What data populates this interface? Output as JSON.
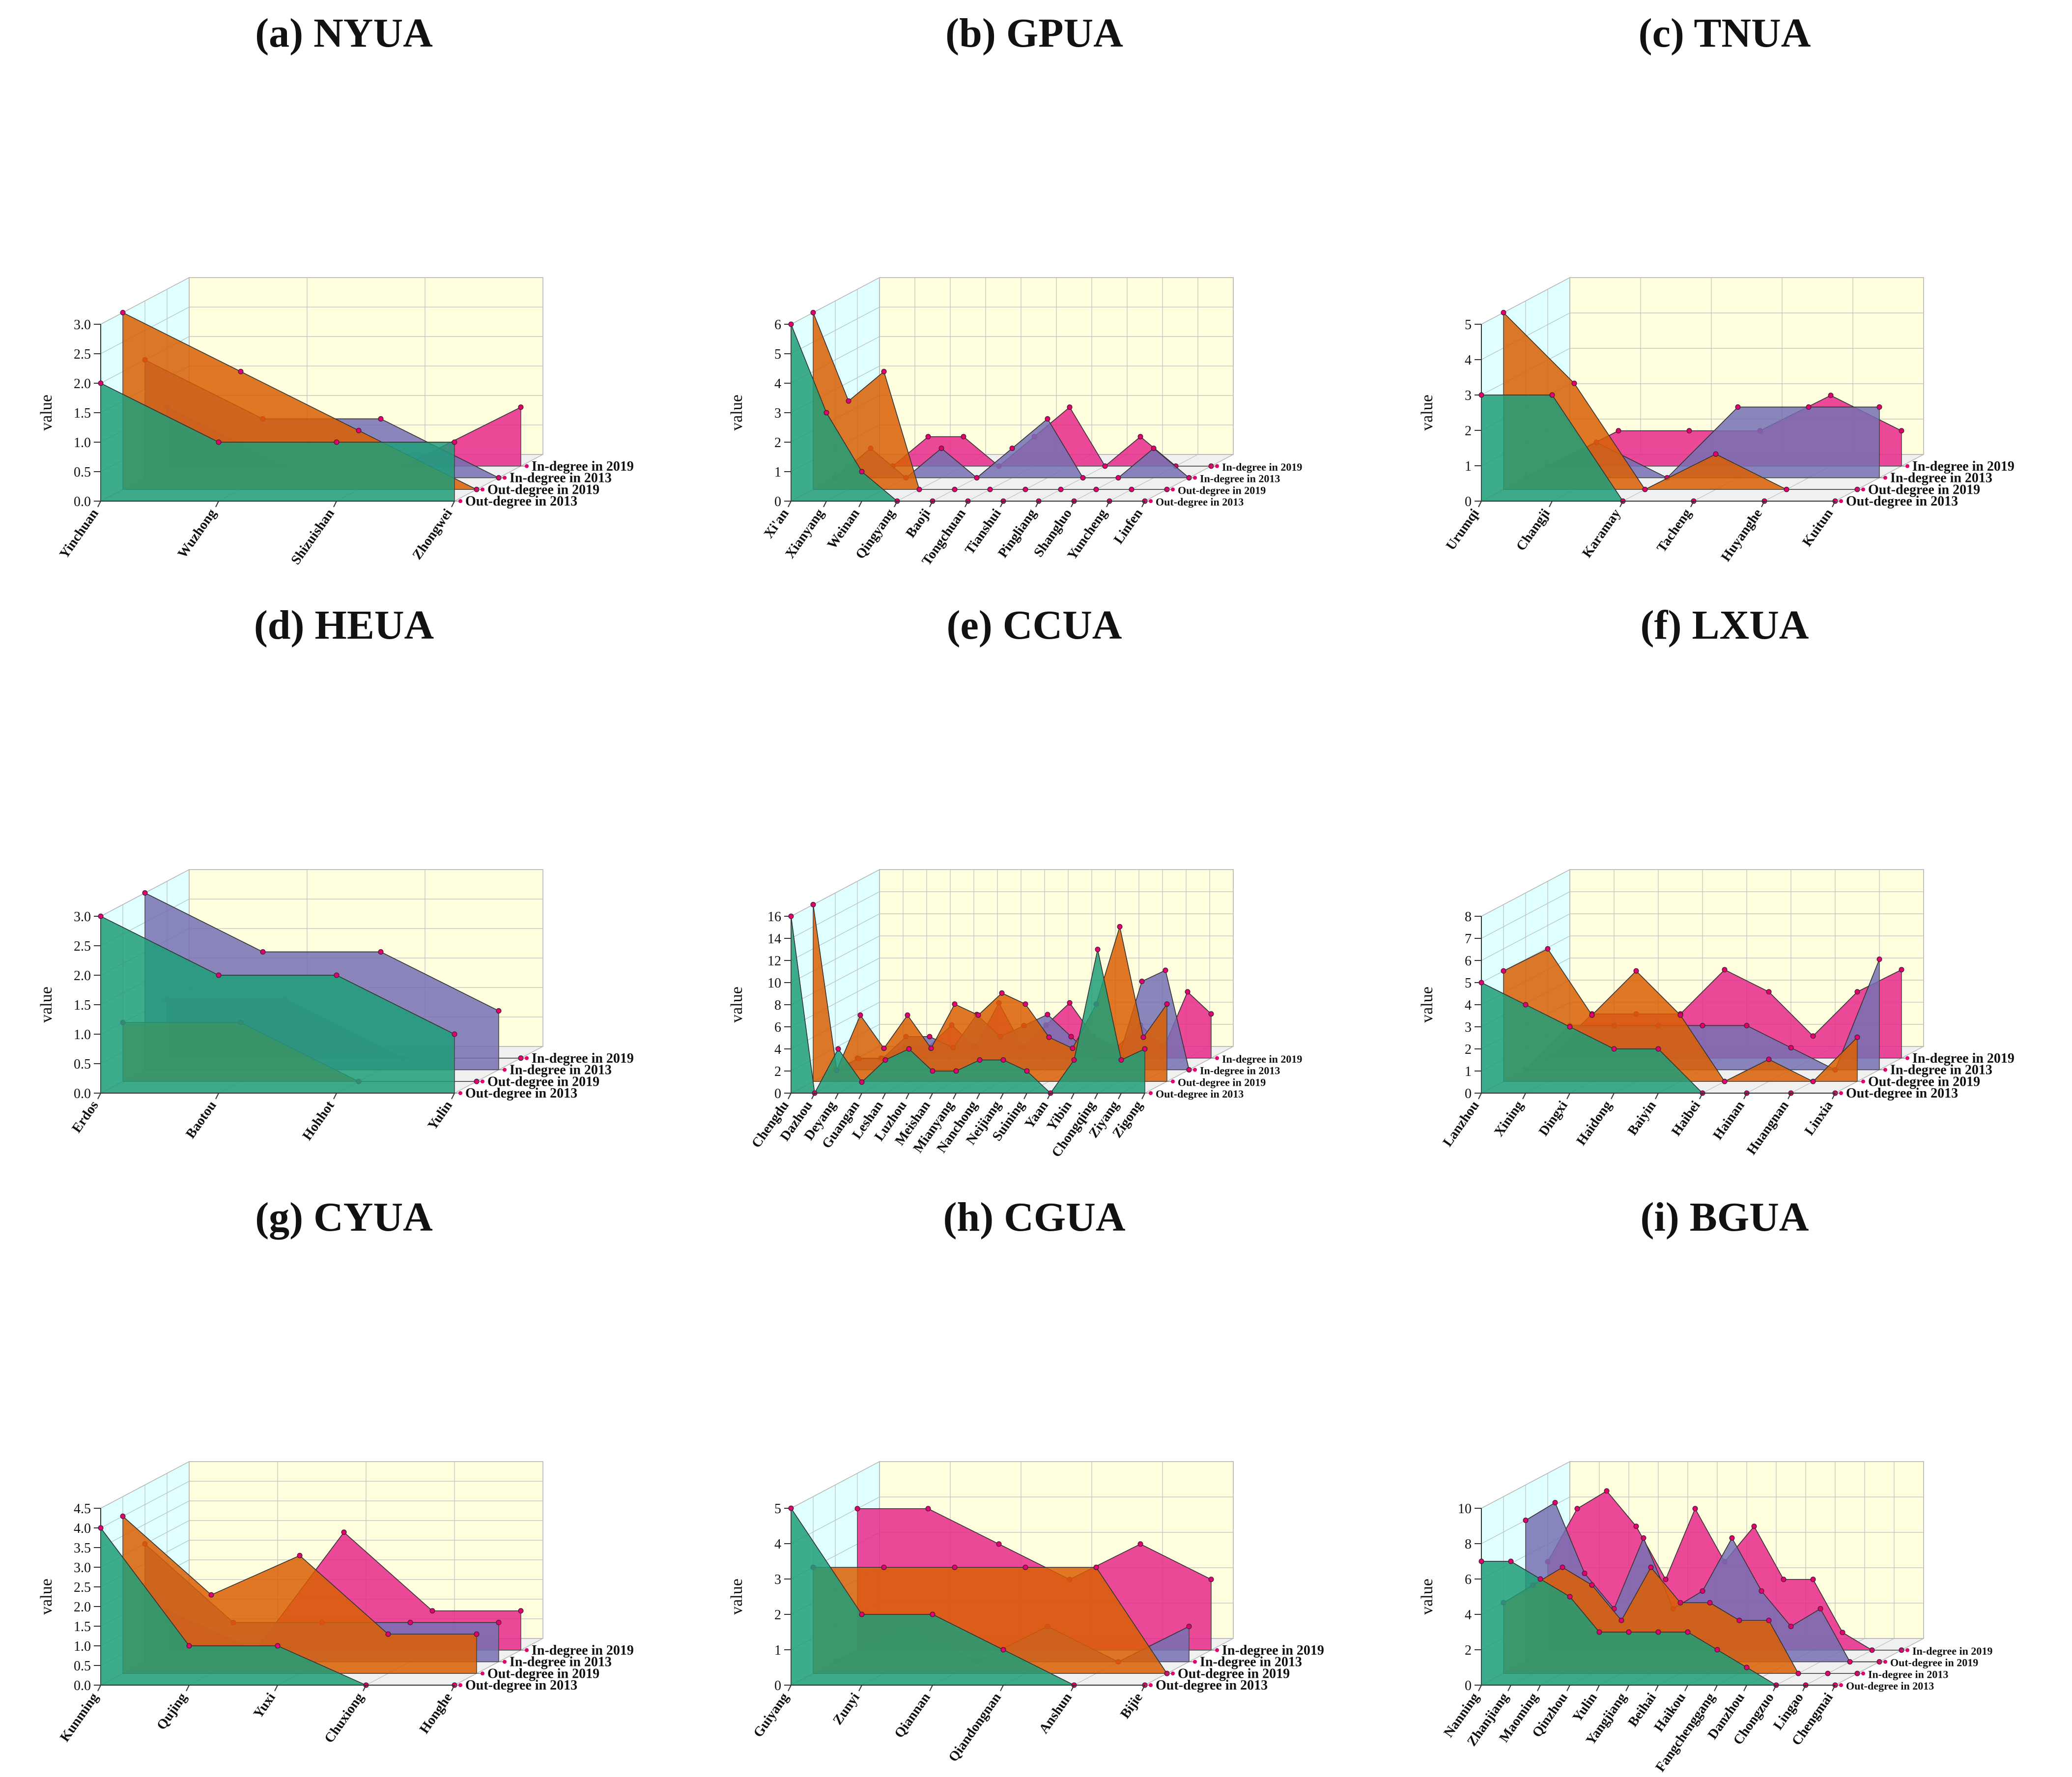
{
  "colors": {
    "out2013": "#1f9e78",
    "out2019": "#d95f04",
    "in2013": "#7570b3",
    "in2019": "#e7298a",
    "wall_back": "#ffffe0",
    "wall_side": "#e0ffff",
    "floor": "#f0f0f0",
    "marker": "#e0006e"
  },
  "chart_data": [
    {
      "panel": "a",
      "title": "(a) NYUA",
      "type": "area",
      "ylabel": "value",
      "ylim": [
        0,
        3
      ],
      "yticks": [
        "0.0",
        "0.5",
        "1.0",
        "1.5",
        "2.0",
        "2.5",
        "3.0"
      ],
      "categories": [
        "Yinchuan",
        "Wuzhong",
        "Shizuishan",
        "Zhongwei"
      ],
      "series": [
        {
          "name": "Out-degree in 2013",
          "color": "out2013",
          "values": [
            2,
            1,
            1,
            1
          ]
        },
        {
          "name": "Out-degree in 2019",
          "color": "out2019",
          "values": [
            3,
            2,
            1,
            0
          ]
        },
        {
          "name": "In-degree in 2013",
          "color": "in2013",
          "values": [
            2,
            1,
            1,
            0
          ]
        },
        {
          "name": "In-degree in 2019",
          "color": "in2019",
          "values": [
            1,
            0,
            0,
            1
          ]
        }
      ]
    },
    {
      "panel": "b",
      "title": "(b) GPUA",
      "type": "area",
      "ylabel": "value",
      "ylim": [
        0,
        6
      ],
      "yticks": [
        "0",
        "1",
        "2",
        "3",
        "4",
        "5",
        "6"
      ],
      "categories": [
        "Xi'an",
        "Xianyang",
        "Weinan",
        "Qingyang",
        "Baoji",
        "Tongchuan",
        "Tianshui",
        "Pingliang",
        "Shangluo",
        "Yuncheng",
        "Linfen"
      ],
      "series": [
        {
          "name": "Out-degree in 2013",
          "color": "out2013",
          "values": [
            6,
            3,
            1,
            0,
            0,
            0,
            0,
            0,
            0,
            0,
            0
          ]
        },
        {
          "name": "Out-degree in 2019",
          "color": "out2019",
          "values": [
            6,
            3,
            4,
            0,
            0,
            0,
            0,
            0,
            0,
            0,
            0
          ]
        },
        {
          "name": "In-degree in 2013",
          "color": "in2013",
          "values": [
            0,
            1,
            0,
            1,
            0,
            1,
            2,
            0,
            0,
            1,
            0
          ]
        },
        {
          "name": "In-degree in 2019",
          "color": "in2019",
          "values": [
            0,
            0,
            1,
            1,
            0,
            1,
            2,
            0,
            1,
            0,
            0
          ]
        }
      ]
    },
    {
      "panel": "c",
      "title": "(c) TNUA",
      "type": "area",
      "ylabel": "value",
      "ylim": [
        0,
        5
      ],
      "yticks": [
        "0",
        "1",
        "2",
        "3",
        "4",
        "5"
      ],
      "categories": [
        "Urumqi",
        "Changji",
        "Karamay",
        "Tacheng",
        "Huyanghe",
        "Kuitun"
      ],
      "series": [
        {
          "name": "Out-degree in 2013",
          "color": "out2013",
          "values": [
            3,
            3,
            0,
            0,
            0,
            0
          ]
        },
        {
          "name": "Out-degree in 2019",
          "color": "out2019",
          "values": [
            5,
            3,
            0,
            1,
            0,
            0
          ]
        },
        {
          "name": "In-degree in 2013",
          "color": "in2013",
          "values": [
            0,
            1,
            0,
            2,
            2,
            2
          ]
        },
        {
          "name": "In-degree in 2019",
          "color": "in2019",
          "values": [
            0,
            1,
            1,
            1,
            2,
            1
          ]
        }
      ]
    },
    {
      "panel": "d",
      "title": "(d) HEUA",
      "type": "area",
      "ylabel": "value",
      "ylim": [
        0,
        3
      ],
      "yticks": [
        "0.0",
        "0.5",
        "1.0",
        "1.5",
        "2.0",
        "2.5",
        "3.0"
      ],
      "categories": [
        "Erdos",
        "Baotou",
        "Hohhot",
        "Yulin"
      ],
      "series": [
        {
          "name": "Out-degree in 2013",
          "color": "out2013",
          "values": [
            3,
            2,
            2,
            1
          ]
        },
        {
          "name": "Out-degree in 2019",
          "color": "out2019",
          "values": [
            1,
            1,
            0,
            0
          ]
        },
        {
          "name": "In-degree in 2013",
          "color": "in2013",
          "values": [
            3,
            2,
            2,
            1
          ]
        },
        {
          "name": "In-degree in 2019",
          "color": "in2019",
          "values": [
            1,
            1,
            0,
            0
          ]
        }
      ]
    },
    {
      "panel": "e",
      "title": "(e) CCUA",
      "type": "area",
      "ylabel": "value",
      "ylim": [
        0,
        16
      ],
      "yticks": [
        "0",
        "2",
        "4",
        "6",
        "8",
        "10",
        "12",
        "14",
        "16"
      ],
      "categories": [
        "Chengdu",
        "Dazhou",
        "Deyang",
        "Guangan",
        "Leshan",
        "Luzhou",
        "Meishan",
        "Mianyang",
        "Nanchong",
        "Neijiang",
        "Suining",
        "Yaan",
        "Yibin",
        "Chongqing",
        "Ziyang",
        "Zigong"
      ],
      "series": [
        {
          "name": "Out-degree in 2013",
          "color": "out2013",
          "values": [
            16,
            0,
            4,
            1,
            3,
            4,
            2,
            2,
            3,
            3,
            2,
            0,
            3,
            13,
            3,
            4
          ]
        },
        {
          "name": "Out-degree in 2019",
          "color": "out2019",
          "values": [
            16,
            1,
            6,
            3,
            6,
            3,
            7,
            6,
            8,
            7,
            4,
            3,
            7,
            14,
            4,
            7
          ]
        },
        {
          "name": "In-degree in 2013",
          "color": "in2013",
          "values": [
            0,
            1,
            1,
            3,
            3,
            2,
            5,
            3,
            4,
            5,
            3,
            1,
            1,
            8,
            9,
            0
          ]
        },
        {
          "name": "In-degree in 2019",
          "color": "in2019",
          "values": [
            0,
            0,
            1,
            1,
            3,
            1,
            5,
            1,
            3,
            5,
            2,
            1,
            3,
            1,
            6,
            4
          ]
        }
      ]
    },
    {
      "panel": "f",
      "title": "(f) LXUA",
      "type": "area",
      "ylabel": "value",
      "ylim": [
        0,
        8
      ],
      "yticks": [
        "0",
        "1",
        "2",
        "3",
        "4",
        "5",
        "6",
        "7",
        "8"
      ],
      "categories": [
        "Lanzhou",
        "Xining",
        "Dingxi",
        "Haidong",
        "Baiyin",
        "Haibei",
        "Hainan",
        "Huangnan",
        "Linxia"
      ],
      "series": [
        {
          "name": "Out-degree in 2013",
          "color": "out2013",
          "values": [
            5,
            4,
            3,
            2,
            2,
            0,
            0,
            0,
            0
          ]
        },
        {
          "name": "Out-degree in 2019",
          "color": "out2019",
          "values": [
            5,
            6,
            3,
            5,
            3,
            0,
            1,
            0,
            2
          ]
        },
        {
          "name": "In-degree in 2013",
          "color": "in2013",
          "values": [
            0,
            2,
            2,
            2,
            2,
            2,
            1,
            0,
            5
          ]
        },
        {
          "name": "In-degree in 2019",
          "color": "in2019",
          "values": [
            0,
            2,
            2,
            2,
            4,
            3,
            1,
            3,
            4
          ]
        }
      ]
    },
    {
      "panel": "g",
      "title": "(g) CYUA",
      "type": "area",
      "ylabel": "value",
      "ylim": [
        0,
        4.5
      ],
      "yticks": [
        "0.0",
        "0.5",
        "1.0",
        "1.5",
        "2.0",
        "2.5",
        "3.0",
        "3.5",
        "4.0",
        "4.5"
      ],
      "categories": [
        "Kunming",
        "Qujing",
        "Yuxi",
        "Chuxiong",
        "Honghe"
      ],
      "series": [
        {
          "name": "Out-degree in 2013",
          "color": "out2013",
          "values": [
            4,
            1,
            1,
            0,
            0
          ]
        },
        {
          "name": "Out-degree in 2019",
          "color": "out2019",
          "values": [
            4,
            2,
            3,
            1,
            1
          ]
        },
        {
          "name": "In-degree in 2013",
          "color": "in2013",
          "values": [
            3,
            1,
            1,
            1,
            1
          ]
        },
        {
          "name": "In-degree in 2019",
          "color": "in2019",
          "values": [
            1,
            0,
            3,
            1,
            1
          ]
        }
      ]
    },
    {
      "panel": "h",
      "title": "(h) CGUA",
      "type": "area",
      "ylabel": "value",
      "ylim": [
        0,
        5
      ],
      "yticks": [
        "0",
        "1",
        "2",
        "3",
        "4",
        "5"
      ],
      "categories": [
        "Guiyang",
        "Zunyi",
        "Qiannan",
        "Qiandongnan",
        "Anshun",
        "Bijie"
      ],
      "series": [
        {
          "name": "Out-degree in 2013",
          "color": "out2013",
          "values": [
            5,
            2,
            2,
            1,
            0,
            0
          ]
        },
        {
          "name": "Out-degree in 2019",
          "color": "out2019",
          "values": [
            3,
            3,
            3,
            3,
            3,
            0
          ]
        },
        {
          "name": "In-degree in 2013",
          "color": "in2013",
          "values": [
            0,
            1,
            0,
            1,
            0,
            1
          ]
        },
        {
          "name": "In-degree in 2019",
          "color": "in2019",
          "values": [
            4,
            4,
            3,
            2,
            3,
            2
          ]
        }
      ]
    },
    {
      "panel": "i",
      "title": "(i) BGUA",
      "type": "area",
      "ylabel": "value",
      "ylim": [
        0,
        10
      ],
      "yticks": [
        "0",
        "2",
        "4",
        "6",
        "8",
        "10"
      ],
      "categories": [
        "Nanning",
        "Zhanjiang",
        "Maoming",
        "Qinzhou",
        "Yulin",
        "Yangjiang",
        "Beihai",
        "Haikou",
        "Fangchenggang",
        "Danzhou",
        "Chongzuo",
        "Lingao",
        "Chengmai"
      ],
      "series": [
        {
          "name": "Out-degree in 2013",
          "color": "out2013",
          "values": [
            7,
            7,
            6,
            5,
            3,
            3,
            3,
            3,
            2,
            1,
            0,
            0,
            0
          ]
        },
        {
          "name": "In-degree in 2013",
          "color": "out2019",
          "values": [
            4,
            5,
            6,
            5,
            3,
            6,
            4,
            4,
            3,
            3,
            0,
            0,
            0
          ]
        },
        {
          "name": "Out-degree in 2019",
          "color": "in2013",
          "values": [
            8,
            9,
            5,
            3,
            7,
            3,
            4,
            7,
            4,
            2,
            3,
            0,
            0
          ]
        },
        {
          "name": "In-degree in 2019",
          "color": "in2019",
          "values": [
            5,
            8,
            9,
            7,
            4,
            8,
            5,
            7,
            4,
            4,
            1,
            0,
            0
          ]
        }
      ]
    }
  ]
}
